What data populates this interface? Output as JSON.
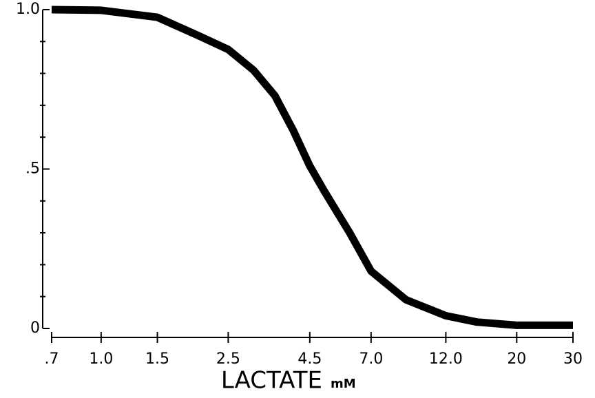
{
  "chart_data": {
    "type": "line",
    "x_label": "LACTATE",
    "x_unit": "mM",
    "x_scale": "log",
    "x": [
      0.7,
      1.0,
      1.5,
      2.0,
      2.5,
      3.0,
      3.5,
      4.0,
      4.5,
      5.0,
      6.0,
      7.0,
      9.0,
      12.0,
      15,
      20,
      30
    ],
    "series": [
      {
        "color": "#000000",
        "values": [
          1.0,
          0.998,
          0.976,
          0.92,
          0.875,
          0.81,
          0.73,
          0.62,
          0.51,
          0.43,
          0.3,
          0.18,
          0.09,
          0.04,
          0.02,
          0.01,
          0.01
        ]
      }
    ],
    "xlim": [
      0.7,
      30
    ],
    "xticks": [
      {
        "value": 0.7,
        "label": ".7"
      },
      {
        "value": 1,
        "label": "1.0"
      },
      1.5,
      2.5,
      4.5,
      {
        "value": 7,
        "label": "7.0"
      },
      {
        "value": 12,
        "label": "12.0"
      },
      20,
      30
    ],
    "ylim": [
      0,
      1
    ],
    "yticks": [
      0,
      {
        "value": 0.5,
        "label": ".5"
      },
      {
        "value": 1,
        "label": "1.0"
      }
    ],
    "yminorticks": [
      0.1,
      0.2,
      0.3,
      0.4,
      0.6,
      0.7,
      0.8,
      0.9
    ]
  }
}
